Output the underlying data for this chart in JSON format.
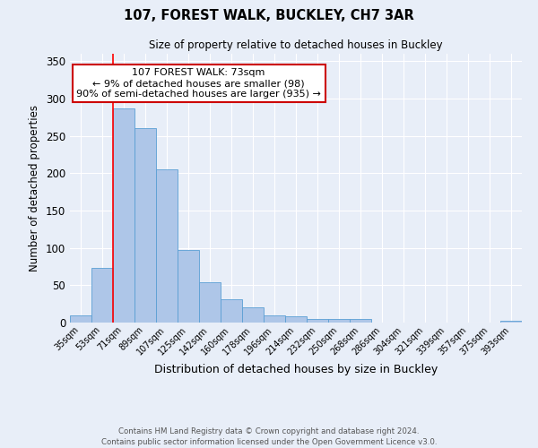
{
  "title": "107, FOREST WALK, BUCKLEY, CH7 3AR",
  "subtitle": "Size of property relative to detached houses in Buckley",
  "xlabel": "Distribution of detached houses by size in Buckley",
  "ylabel": "Number of detached properties",
  "categories": [
    "35sqm",
    "53sqm",
    "71sqm",
    "89sqm",
    "107sqm",
    "125sqm",
    "142sqm",
    "160sqm",
    "178sqm",
    "196sqm",
    "214sqm",
    "232sqm",
    "250sqm",
    "268sqm",
    "286sqm",
    "304sqm",
    "321sqm",
    "339sqm",
    "357sqm",
    "375sqm",
    "393sqm"
  ],
  "values": [
    10,
    73,
    287,
    260,
    205,
    97,
    54,
    31,
    21,
    10,
    8,
    5,
    5,
    5,
    0,
    0,
    0,
    0,
    0,
    0,
    2
  ],
  "bar_color": "#aec6e8",
  "bar_edge_color": "#5a9fd4",
  "red_line_index": 2,
  "annotation_title": "107 FOREST WALK: 73sqm",
  "annotation_line2": "← 9% of detached houses are smaller (98)",
  "annotation_line3": "90% of semi-detached houses are larger (935) →",
  "annotation_box_color": "#ffffff",
  "annotation_box_edge_color": "#cc0000",
  "ylim": [
    0,
    360
  ],
  "yticks": [
    0,
    50,
    100,
    150,
    200,
    250,
    300,
    350
  ],
  "footer_line1": "Contains HM Land Registry data © Crown copyright and database right 2024.",
  "footer_line2": "Contains public sector information licensed under the Open Government Licence v3.0.",
  "bg_color": "#e8eef8",
  "plot_bg_color": "#e8eef8",
  "grid_color": "#ffffff"
}
